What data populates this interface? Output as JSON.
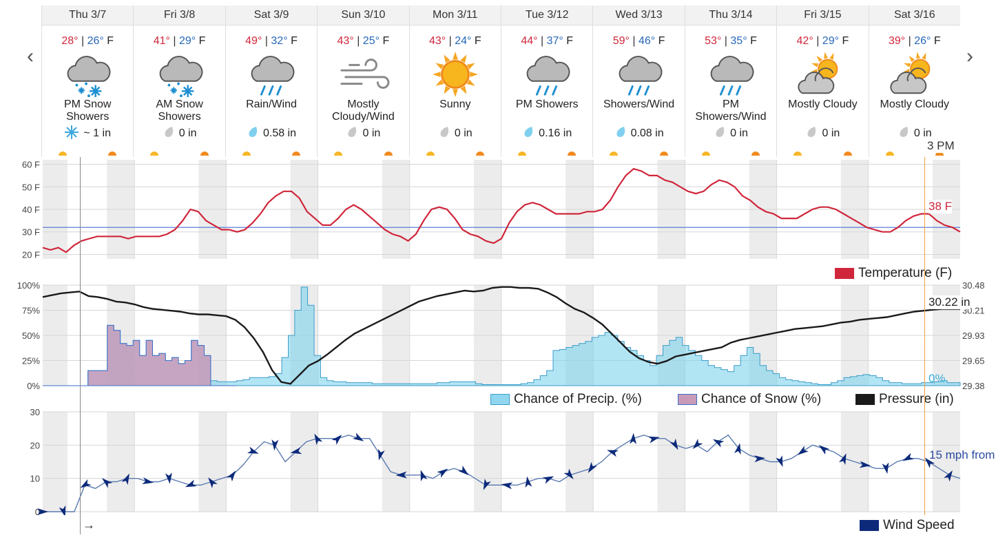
{
  "nav": {
    "prev": "‹",
    "next": "›"
  },
  "days": [
    {
      "date": "Thu 3/7",
      "hi": "28°",
      "lo": "26°",
      "unit": "F",
      "cond": [
        "PM Snow",
        "Showers"
      ],
      "icon": "snow",
      "amount": "~ 1 in",
      "drop": "snowflake"
    },
    {
      "date": "Fri 3/8",
      "hi": "41°",
      "lo": "29°",
      "unit": "F",
      "cond": [
        "AM Snow",
        "Showers"
      ],
      "icon": "snow",
      "amount": "0 in",
      "drop": "gray"
    },
    {
      "date": "Sat 3/9",
      "hi": "49°",
      "lo": "32°",
      "unit": "F",
      "cond": [
        "Rain/Wind",
        ""
      ],
      "icon": "rain",
      "amount": "0.58 in",
      "drop": "blue"
    },
    {
      "date": "Sun 3/10",
      "hi": "43°",
      "lo": "25°",
      "unit": "F",
      "cond": [
        "Mostly",
        "Cloudy/Wind"
      ],
      "icon": "wind",
      "amount": "0 in",
      "drop": "gray"
    },
    {
      "date": "Mon 3/11",
      "hi": "43°",
      "lo": "24°",
      "unit": "F",
      "cond": [
        "Sunny",
        ""
      ],
      "icon": "sun",
      "amount": "0 in",
      "drop": "gray"
    },
    {
      "date": "Tue 3/12",
      "hi": "44°",
      "lo": "37°",
      "unit": "F",
      "cond": [
        "PM Showers",
        ""
      ],
      "icon": "rain",
      "amount": "0.16 in",
      "drop": "blue"
    },
    {
      "date": "Wed 3/13",
      "hi": "59°",
      "lo": "46°",
      "unit": "F",
      "cond": [
        "Showers/Wind",
        ""
      ],
      "icon": "rain",
      "amount": "0.08 in",
      "drop": "blue"
    },
    {
      "date": "Thu 3/14",
      "hi": "53°",
      "lo": "35°",
      "unit": "F",
      "cond": [
        "PM",
        "Showers/Wind"
      ],
      "icon": "rain",
      "amount": "0 in",
      "drop": "gray"
    },
    {
      "date": "Fri 3/15",
      "hi": "42°",
      "lo": "29°",
      "unit": "F",
      "cond": [
        "Mostly Cloudy",
        ""
      ],
      "icon": "partly",
      "amount": "0 in",
      "drop": "gray"
    },
    {
      "date": "Sat 3/16",
      "hi": "39°",
      "lo": "26°",
      "unit": "F",
      "cond": [
        "Mostly Cloudy",
        ""
      ],
      "icon": "partly",
      "amount": "0 in",
      "drop": "gray"
    }
  ],
  "hover": {
    "time": "3 PM",
    "temp": "38 F",
    "pressure": "30.22 in",
    "precip": "0%",
    "wind": "15 mph from"
  },
  "cursor_arrow": "→",
  "legends": {
    "temp": "Temperature (F)",
    "precip": "Chance of Precip. (%)",
    "snow": "Chance of Snow (%)",
    "pressure": "Pressure (in)",
    "wind": "Wind Speed"
  },
  "colors": {
    "temp": "#d0263b",
    "precip": "#7fd3ec",
    "snow": "#c89ab8",
    "pressure": "#1a1a1a",
    "wind": "#0d2a7a",
    "freezing": "#4a6fd0"
  },
  "chart_data": [
    {
      "type": "line",
      "ylabel": "",
      "yticks": [
        "60 F",
        "50 F",
        "40 F",
        "30 F",
        "20 F"
      ],
      "ylim": [
        18,
        62
      ],
      "freezing_line": 32,
      "x_hours_from_start_step": 3,
      "series": [
        {
          "name": "Temperature (F)",
          "values": [
            23,
            22,
            23,
            21,
            24,
            26,
            27,
            28,
            28,
            28,
            28,
            27,
            28,
            28,
            28,
            28,
            29,
            31,
            35,
            40,
            39,
            35,
            33,
            31,
            31,
            30,
            31,
            34,
            38,
            43,
            46,
            48,
            48,
            45,
            39,
            36,
            33,
            33,
            36,
            40,
            42,
            40,
            37,
            34,
            31,
            29,
            28,
            26,
            29,
            35,
            40,
            41,
            40,
            36,
            31,
            29,
            28,
            26,
            25,
            27,
            34,
            39,
            42,
            43,
            42,
            40,
            38,
            38,
            38,
            38,
            39,
            39,
            40,
            44,
            50,
            55,
            58,
            57,
            55,
            55,
            53,
            52,
            50,
            48,
            47,
            48,
            51,
            53,
            52,
            50,
            46,
            44,
            41,
            39,
            38,
            36,
            36,
            36,
            38,
            40,
            41,
            41,
            40,
            38,
            36,
            34,
            32,
            31,
            30,
            30,
            32,
            35,
            37,
            38,
            38,
            35,
            33,
            32,
            30
          ]
        }
      ]
    },
    {
      "type": "area",
      "yticks_left": [
        "100%",
        "75%",
        "50%",
        "25%",
        "0%"
      ],
      "yticks_right": [
        "30.48",
        "30.21",
        "29.93",
        "29.65",
        "29.38"
      ],
      "ylim": [
        0,
        100
      ],
      "pressure_lim": [
        29.38,
        30.48
      ],
      "series": [
        {
          "name": "Chance of Precip. (%)",
          "values": [
            0,
            0,
            0,
            0,
            0,
            0,
            0,
            15,
            15,
            15,
            60,
            55,
            42,
            40,
            45,
            30,
            45,
            30,
            32,
            25,
            28,
            22,
            25,
            45,
            40,
            30,
            5,
            4,
            4,
            4,
            5,
            6,
            8,
            8,
            8,
            9,
            12,
            28,
            50,
            75,
            98,
            80,
            30,
            8,
            5,
            4,
            4,
            3,
            3,
            3,
            3,
            2,
            2,
            2,
            2,
            2,
            2,
            2,
            2,
            2,
            2,
            3,
            3,
            4,
            4,
            4,
            4,
            2,
            1,
            1,
            1,
            1,
            1,
            1,
            2,
            3,
            6,
            10,
            15,
            35,
            36,
            38,
            40,
            42,
            44,
            48,
            50,
            53,
            50,
            44,
            38,
            35,
            30,
            25,
            20,
            30,
            40,
            45,
            48,
            40,
            35,
            30,
            25,
            20,
            18,
            16,
            14,
            20,
            30,
            38,
            32,
            20,
            15,
            12,
            8,
            6,
            5,
            4,
            3,
            2,
            1,
            1,
            3,
            5,
            8,
            9,
            10,
            11,
            10,
            8,
            5,
            3,
            3,
            2,
            2,
            2,
            3,
            3,
            4,
            5,
            3,
            3
          ]
        },
        {
          "name": "Chance of Snow (%)",
          "values": [
            0,
            0,
            0,
            0,
            0,
            0,
            0,
            15,
            15,
            15,
            60,
            55,
            42,
            40,
            45,
            30,
            45,
            30,
            32,
            25,
            28,
            22,
            25,
            45,
            40,
            30,
            0,
            0,
            0,
            0
          ]
        },
        {
          "name": "Pressure (in)",
          "values": [
            30.35,
            30.37,
            30.39,
            30.4,
            30.41,
            30.36,
            30.35,
            30.33,
            30.3,
            30.29,
            30.27,
            30.24,
            30.22,
            30.21,
            30.2,
            30.19,
            30.17,
            30.16,
            30.16,
            30.15,
            30.14,
            30.1,
            30.02,
            29.9,
            29.75,
            29.55,
            29.42,
            29.4,
            29.5,
            29.6,
            29.65,
            29.72,
            29.8,
            29.88,
            29.95,
            30.0,
            30.05,
            30.1,
            30.15,
            30.2,
            30.25,
            30.3,
            30.33,
            30.36,
            30.38,
            30.4,
            30.42,
            30.41,
            30.42,
            30.45,
            30.46,
            30.46,
            30.45,
            30.45,
            30.44,
            30.4,
            30.35,
            30.28,
            30.22,
            30.18,
            30.12,
            30.05,
            29.95,
            29.85,
            29.75,
            29.68,
            29.64,
            29.62,
            29.65,
            29.7,
            29.72,
            29.74,
            29.76,
            29.78,
            29.8,
            29.85,
            29.88,
            29.9,
            29.92,
            29.94,
            29.96,
            29.98,
            30.0,
            30.01,
            30.02,
            30.03,
            30.05,
            30.07,
            30.08,
            30.1,
            30.11,
            30.12,
            30.13,
            30.15,
            30.17,
            30.19,
            30.2,
            30.21,
            30.22,
            30.22,
            30.22
          ]
        }
      ]
    },
    {
      "type": "line",
      "yticks": [
        "30",
        "20",
        "10",
        "0"
      ],
      "ylim": [
        0,
        30
      ],
      "series": [
        {
          "name": "Wind Speed",
          "values": [
            0,
            0,
            0,
            0,
            8,
            7,
            9,
            9,
            10,
            10,
            9,
            9,
            10,
            9,
            8,
            8,
            9,
            10,
            11,
            14,
            18,
            21,
            20,
            15,
            18,
            21,
            22,
            22,
            22,
            23,
            22,
            22,
            17,
            12,
            11,
            11,
            11,
            10,
            12,
            13,
            12,
            10,
            8,
            8,
            8,
            8,
            9,
            10,
            10,
            9,
            11,
            12,
            13,
            15,
            18,
            20,
            22,
            23,
            22,
            22,
            20,
            19,
            20,
            18,
            21,
            23,
            19,
            17,
            16,
            15,
            15,
            16,
            18,
            20,
            19,
            18,
            16,
            15,
            14,
            13,
            13,
            15,
            16,
            16,
            15,
            13,
            11,
            10
          ]
        }
      ]
    }
  ]
}
